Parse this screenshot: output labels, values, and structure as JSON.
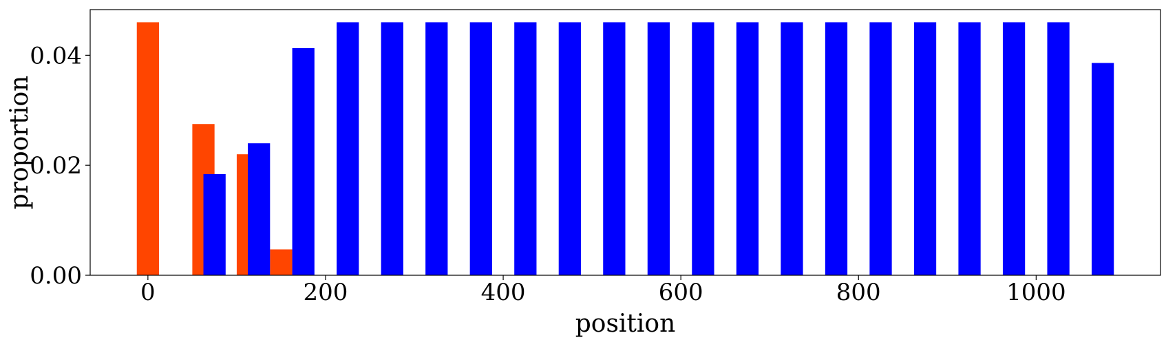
{
  "chart_data": {
    "type": "bar",
    "xlabel": "position",
    "ylabel": "proportion",
    "xlim": [
      -65,
      1140
    ],
    "ylim": [
      0,
      0.0483
    ],
    "bar_width": 25,
    "xticks": [
      0,
      200,
      400,
      600,
      800,
      1000
    ],
    "xtick_labels": [
      "0",
      "200",
      "400",
      "600",
      "800",
      "1000"
    ],
    "yticks": [
      0.0,
      0.02,
      0.04
    ],
    "ytick_labels": [
      "0.00",
      "0.02",
      "0.04"
    ],
    "grid": false,
    "series": [
      {
        "color": "#ff4500",
        "x": [
          0,
          62.5,
          112.5,
          150
        ],
        "values": [
          0.046,
          0.0275,
          0.022,
          0.0047
        ]
      },
      {
        "color": "#0000ff",
        "x": [
          75,
          125,
          175,
          225,
          275,
          325,
          375,
          425,
          475,
          525,
          575,
          625,
          675,
          725,
          775,
          825,
          875,
          925,
          975,
          1025,
          1075
        ],
        "values": [
          0.0184,
          0.024,
          0.0413,
          0.046,
          0.046,
          0.046,
          0.046,
          0.046,
          0.046,
          0.046,
          0.046,
          0.046,
          0.046,
          0.046,
          0.046,
          0.046,
          0.046,
          0.046,
          0.046,
          0.046,
          0.0386
        ]
      }
    ]
  }
}
